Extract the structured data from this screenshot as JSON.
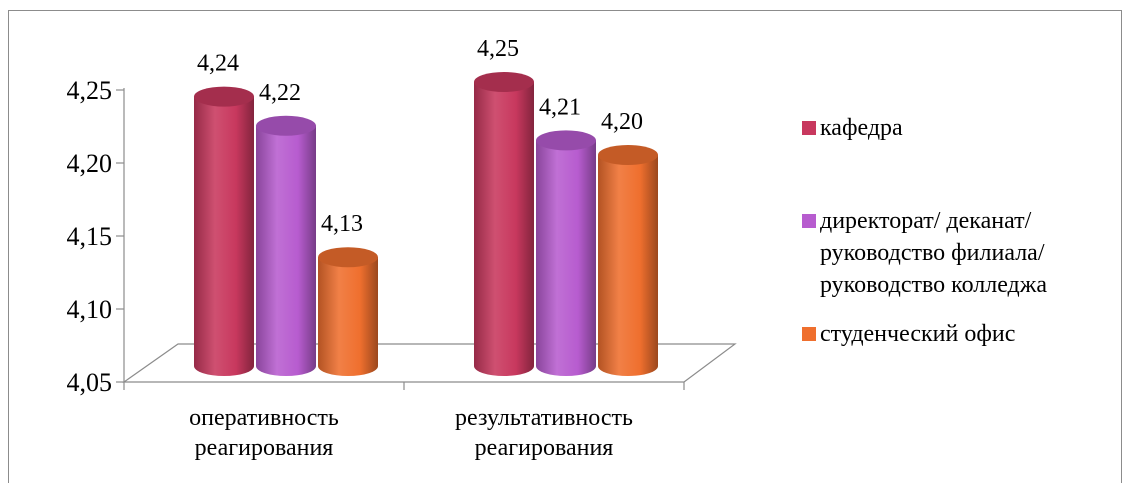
{
  "chart_data": {
    "type": "bar",
    "style": "3d-cylinder",
    "categories": [
      "оперативность реагирования",
      "результативность реагирования"
    ],
    "category_lines": [
      [
        "оперативность",
        "реагирования"
      ],
      [
        "результативность",
        "реагирования"
      ]
    ],
    "series": [
      {
        "name": "кафедра",
        "color": "#c8385e",
        "values": [
          4.24,
          4.25
        ],
        "labels": [
          "4,24",
          "4,25"
        ]
      },
      {
        "name": "директорат/ деканат/ руководство филиала/ руководство колледжа",
        "name_lines": [
          "директорат/ деканат/",
          "руководство филиала/",
          "руководство колледжа"
        ],
        "color": "#b75ccf",
        "values": [
          4.22,
          4.21
        ],
        "labels": [
          "4,22",
          "4,21"
        ]
      },
      {
        "name": "студенческий офис",
        "color": "#ef6f2e",
        "values": [
          4.13,
          4.2
        ],
        "labels": [
          "4,13",
          "4,20"
        ]
      }
    ],
    "yticks": [
      "4,05",
      "4,10",
      "4,15",
      "4,20",
      "4,25"
    ],
    "ylim": [
      4.05,
      4.25
    ],
    "grid": false,
    "legend": "right"
  }
}
